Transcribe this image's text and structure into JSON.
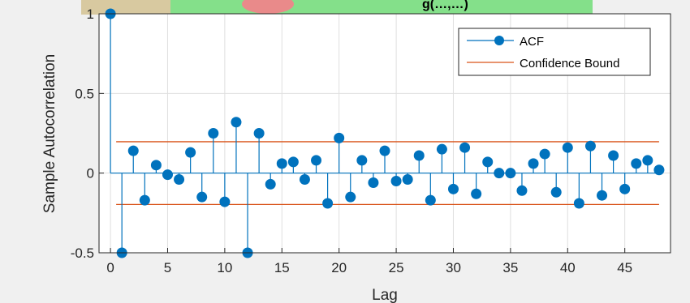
{
  "chart_data": {
    "type": "stem",
    "title": "",
    "title_visible_fragment": "g(…,…)",
    "xlabel": "Lag",
    "ylabel": "Sample Autocorrelation",
    "xlim": [
      -1,
      49
    ],
    "ylim": [
      -0.5,
      1
    ],
    "xticks": [
      0,
      5,
      10,
      15,
      20,
      25,
      30,
      35,
      40,
      45
    ],
    "yticks": [
      -0.5,
      0,
      0.5,
      1
    ],
    "ytick_labels": [
      "-0.5",
      "0",
      "0.5",
      "1"
    ],
    "grid": true,
    "legend_position": "top-right",
    "series": [
      {
        "name": "ACF",
        "x": [
          0,
          1,
          2,
          3,
          4,
          5,
          6,
          7,
          8,
          9,
          10,
          11,
          12,
          13,
          14,
          15,
          16,
          17,
          18,
          19,
          20,
          21,
          22,
          23,
          24,
          25,
          26,
          27,
          28,
          29,
          30,
          31,
          32,
          33,
          34,
          35,
          36,
          37,
          38,
          39,
          40,
          41,
          42,
          43,
          44,
          45,
          46,
          47,
          48
        ],
        "values": [
          1.0,
          -0.5,
          0.14,
          -0.17,
          0.05,
          -0.01,
          -0.04,
          0.13,
          -0.15,
          0.25,
          -0.18,
          0.32,
          -0.5,
          0.25,
          -0.07,
          0.06,
          0.07,
          -0.04,
          0.08,
          -0.19,
          0.22,
          -0.15,
          0.08,
          -0.06,
          0.14,
          -0.05,
          -0.04,
          0.11,
          -0.17,
          0.15,
          -0.1,
          0.16,
          -0.13,
          0.07,
          0.0,
          0.0,
          -0.11,
          0.06,
          0.12,
          -0.12,
          0.16,
          -0.19,
          0.17,
          -0.14,
          0.11,
          -0.1,
          0.06,
          0.08,
          0.02
        ]
      },
      {
        "name": "Confidence Bound",
        "upper": 0.197,
        "lower": -0.197
      }
    ],
    "colors": {
      "stem": "#0072BD",
      "bound": "#D95319",
      "grid": "#dfdfdf",
      "plot_bg": "#ffffff",
      "figure_bg": "#f0f0f0",
      "axes_box": "#262626",
      "banner_green": "#84e08a",
      "banner_pink": "#e98a8a",
      "banner_tan": "#d8c9a0"
    }
  }
}
